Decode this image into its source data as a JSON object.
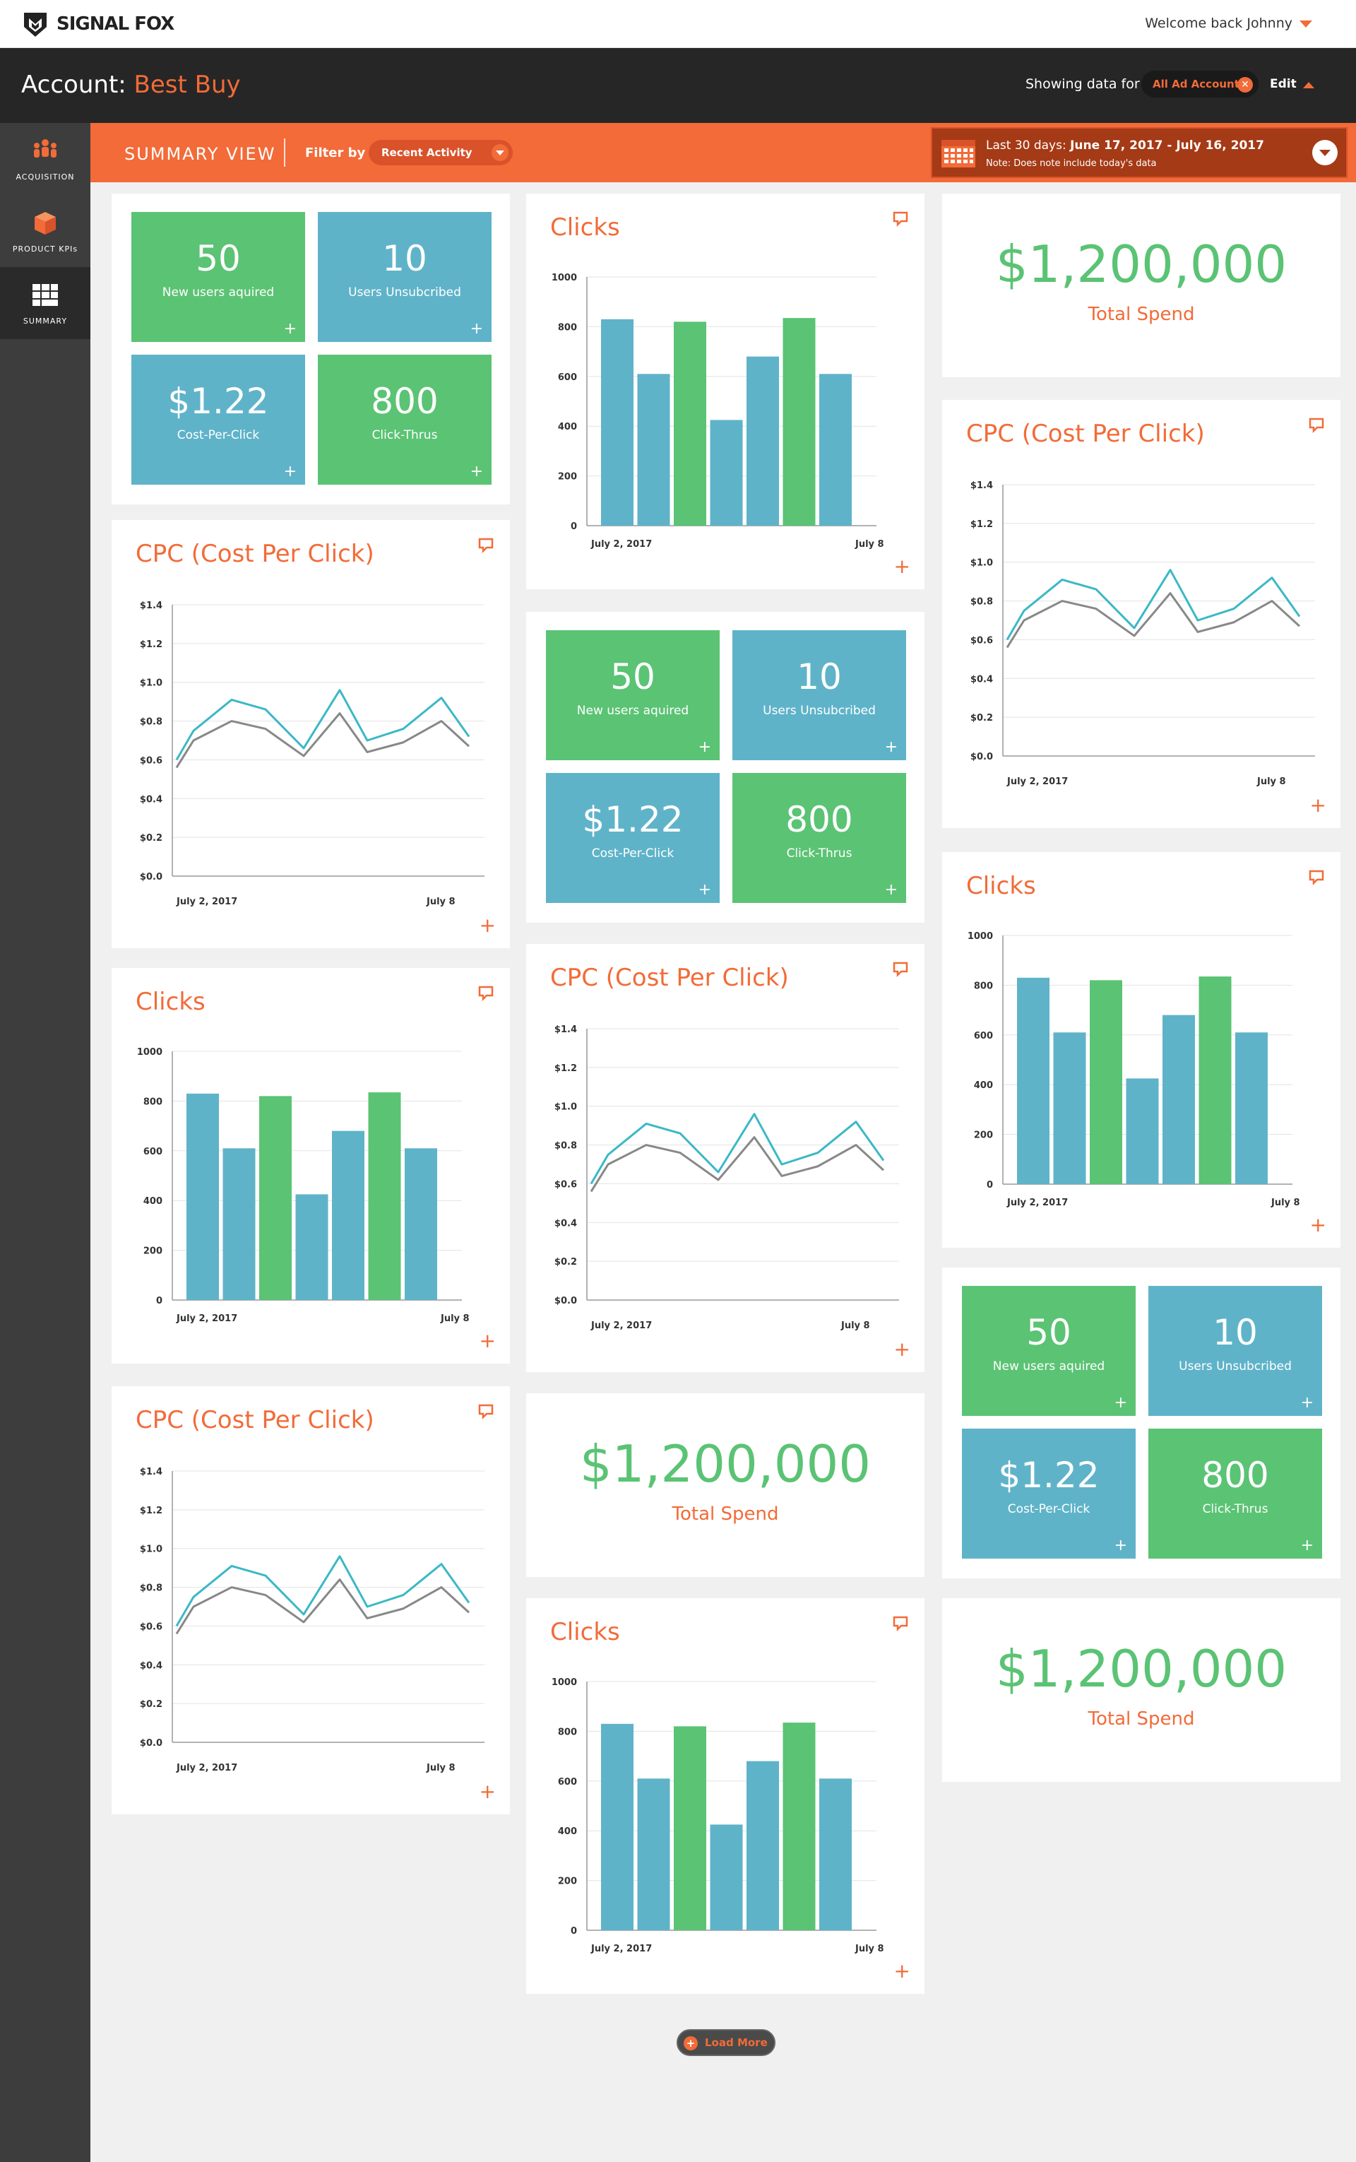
{
  "header": {
    "brand_part1": "SIGNAL",
    "brand_part2": "FOX",
    "welcome": "Welcome back Johnny"
  },
  "account": {
    "prefix": "Account: ",
    "name": "Best Buy",
    "showing_label": "Showing data for",
    "accounts_pill": "All Ad Accounts",
    "edit_label": "Edit"
  },
  "sidebar": {
    "items": [
      {
        "label": "ACQUISITION",
        "icon": "users-group-icon"
      },
      {
        "label": "PRODUCT KPIs",
        "icon": "cube-icon"
      },
      {
        "label": "SUMMARY",
        "icon": "grid-icon"
      }
    ]
  },
  "filterbar": {
    "view_title": "SUMMARY VIEW",
    "filter_label": "Filter by",
    "filter_value": "Recent Activity",
    "date_prefix": "Last 30 days: ",
    "date_range": "June 17, 2017 - July 16, 2017",
    "date_note": "Note: Does note include today's data"
  },
  "kpis": [
    {
      "value": "50",
      "label": "New users aquired",
      "color": "#5bc374"
    },
    {
      "value": "10",
      "label": "Users Unsubcribed",
      "color": "#5fb3c9"
    },
    {
      "value": "$1.22",
      "label": "Cost-Per-Click",
      "color": "#5fb3c9"
    },
    {
      "value": "800",
      "label": "Click-Thrus",
      "color": "#5bc374"
    }
  ],
  "total_spend": {
    "value": "$1,200,000",
    "label": "Total Spend"
  },
  "clicks_title": "Clicks",
  "cpc_title": "CPC (Cost Per Click)",
  "load_more": "Load More",
  "chart_data": [
    {
      "type": "bar",
      "title": "Clicks",
      "x_tick_labels": [
        "July 2, 2017",
        "July 8"
      ],
      "y_ticks": [
        "0",
        "200",
        "400",
        "600",
        "800",
        "1000"
      ],
      "ylim": [
        0,
        1000
      ],
      "values": [
        830,
        610,
        820,
        425,
        680,
        835,
        610
      ],
      "colors": [
        "#5fb3c9",
        "#5fb3c9",
        "#5bc374",
        "#5fb3c9",
        "#5fb3c9",
        "#5bc374",
        "#5fb3c9"
      ]
    },
    {
      "type": "line",
      "title": "CPC (Cost Per Click)",
      "x_tick_labels": [
        "July 2, 2017",
        "July 8"
      ],
      "y_ticks": [
        "$0.0",
        "$0.2",
        "$0.4",
        "$0.6",
        "$0.8",
        "$1.0",
        "$1.2",
        "$1.4"
      ],
      "ylim": [
        0,
        1.4
      ],
      "series": [
        {
          "color": "#3bb8c6",
          "values": [
            0.6,
            0.75,
            0.91,
            0.86,
            0.66,
            0.96,
            0.7,
            0.76,
            0.92,
            0.72
          ]
        },
        {
          "color": "#888888",
          "values": [
            0.56,
            0.7,
            0.8,
            0.76,
            0.62,
            0.84,
            0.64,
            0.69,
            0.8,
            0.67
          ]
        }
      ]
    }
  ]
}
